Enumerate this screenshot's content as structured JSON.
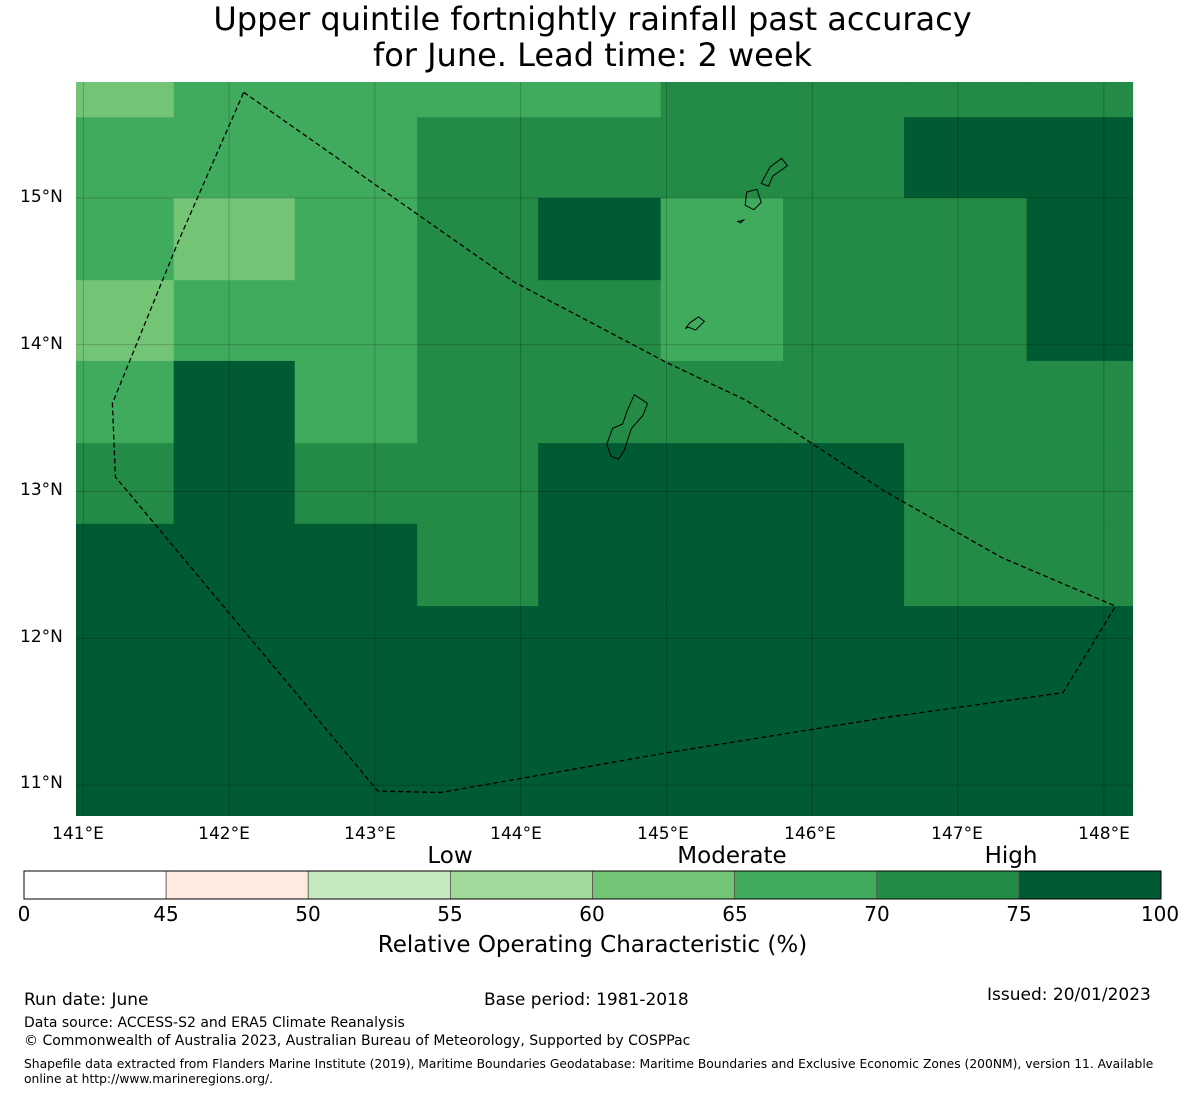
{
  "title": {
    "line1": "Upper quintile fortnightly rainfall past accuracy",
    "line2": "for June. Lead time: 2 week"
  },
  "map": {
    "lon_min": 140.95,
    "lon_max": 148.2,
    "lat_min": 10.79,
    "lat_max": 15.79,
    "lat_labels": [
      "15°N",
      "14°N",
      "13°N",
      "12°N",
      "11°N"
    ],
    "lon_labels": [
      "141°E",
      "142°E",
      "143°E",
      "144°E",
      "145°E",
      "146°E",
      "147°E",
      "148°E"
    ],
    "grid_lat": [
      15,
      14,
      13,
      12,
      11
    ],
    "grid_lon": [
      141,
      142,
      143,
      144,
      145,
      146,
      147,
      148
    ],
    "cells": {
      "lon_edges": [
        140.95,
        141.62,
        142.45,
        143.29,
        144.12,
        144.96,
        145.8,
        146.63,
        147.47,
        148.2
      ],
      "lat_edges": [
        15.79,
        15.55,
        15.0,
        14.44,
        13.89,
        13.33,
        12.78,
        12.22,
        10.79
      ],
      "values": [
        [
          62,
          67,
          67,
          67,
          67,
          72,
          72,
          72,
          72
        ],
        [
          67,
          67,
          67,
          72,
          72,
          72,
          72,
          78,
          78
        ],
        [
          67,
          62,
          67,
          72,
          78,
          67,
          72,
          72,
          78
        ],
        [
          62,
          67,
          67,
          72,
          72,
          67,
          72,
          72,
          78
        ],
        [
          67,
          78,
          67,
          72,
          72,
          72,
          72,
          72,
          72
        ],
        [
          72,
          78,
          72,
          72,
          78,
          78,
          78,
          72,
          72
        ],
        [
          78,
          78,
          78,
          72,
          78,
          78,
          78,
          72,
          72
        ],
        [
          78,
          78,
          78,
          78,
          78,
          78,
          78,
          78,
          78
        ]
      ]
    },
    "boundary": [
      [
        142.1,
        15.72
      ],
      [
        143.95,
        14.43
      ],
      [
        145.0,
        13.88
      ],
      [
        145.55,
        13.62
      ],
      [
        146.5,
        13.0
      ],
      [
        147.3,
        12.55
      ],
      [
        148.08,
        12.22
      ],
      [
        147.72,
        11.63
      ],
      [
        146.5,
        11.46
      ],
      [
        145.0,
        11.22
      ],
      [
        143.45,
        10.95
      ],
      [
        143.02,
        10.96
      ],
      [
        141.22,
        13.1
      ],
      [
        141.2,
        13.6
      ],
      [
        141.65,
        14.7
      ],
      [
        142.1,
        15.72
      ]
    ],
    "islands": [
      [
        [
          144.62,
          13.24
        ],
        [
          144.59,
          13.32
        ],
        [
          144.63,
          13.43
        ],
        [
          144.7,
          13.46
        ],
        [
          144.73,
          13.55
        ],
        [
          144.78,
          13.66
        ],
        [
          144.87,
          13.6
        ],
        [
          144.84,
          13.52
        ],
        [
          144.76,
          13.43
        ],
        [
          144.71,
          13.28
        ],
        [
          144.67,
          13.22
        ]
      ],
      [
        [
          145.13,
          14.11
        ],
        [
          145.16,
          14.15
        ],
        [
          145.22,
          14.19
        ],
        [
          145.26,
          14.16
        ],
        [
          145.2,
          14.1
        ],
        [
          145.15,
          14.12
        ]
      ],
      [
        [
          145.54,
          14.95
        ],
        [
          145.6,
          14.92
        ],
        [
          145.65,
          14.97
        ],
        [
          145.62,
          15.06
        ],
        [
          145.55,
          15.04
        ]
      ],
      [
        [
          145.65,
          15.1
        ],
        [
          145.71,
          15.21
        ],
        [
          145.79,
          15.27
        ],
        [
          145.83,
          15.22
        ],
        [
          145.73,
          15.15
        ],
        [
          145.7,
          15.08
        ]
      ],
      [
        [
          145.49,
          14.84
        ],
        [
          145.53,
          14.85
        ],
        [
          145.51,
          14.83
        ]
      ]
    ]
  },
  "colorbar": {
    "ticks": [
      "0",
      "45",
      "50",
      "55",
      "60",
      "65",
      "70",
      "75",
      "100"
    ],
    "colors": [
      "#ffffff",
      "#feeae1",
      "#c7e9c0",
      "#a1d99b",
      "#74c476",
      "#41ab5d",
      "#238b45",
      "#005a32"
    ],
    "categories": [
      "Low",
      "Moderate",
      "High"
    ],
    "label": "Relative Operating Characteristic (%)"
  },
  "footer": {
    "run_date": "Run date: June",
    "base_period": "Base period: 1981-2018",
    "issued": "Issued: 20/01/2023",
    "data_source": "Data source: ACCESS-S2 and ERA5 Climate Reanalysis",
    "copyright": "© Commonwealth of Australia 2023, Australian Bureau of Meteorology, Supported by COSPPac",
    "shapefile": "Shapefile data extracted from Flanders Marine Institute (2019), Maritime Boundaries Geodatabase: Maritime Boundaries and Exclusive Economic Zones (200NM), version 11. Available online at http://www.marineregions.org/."
  }
}
